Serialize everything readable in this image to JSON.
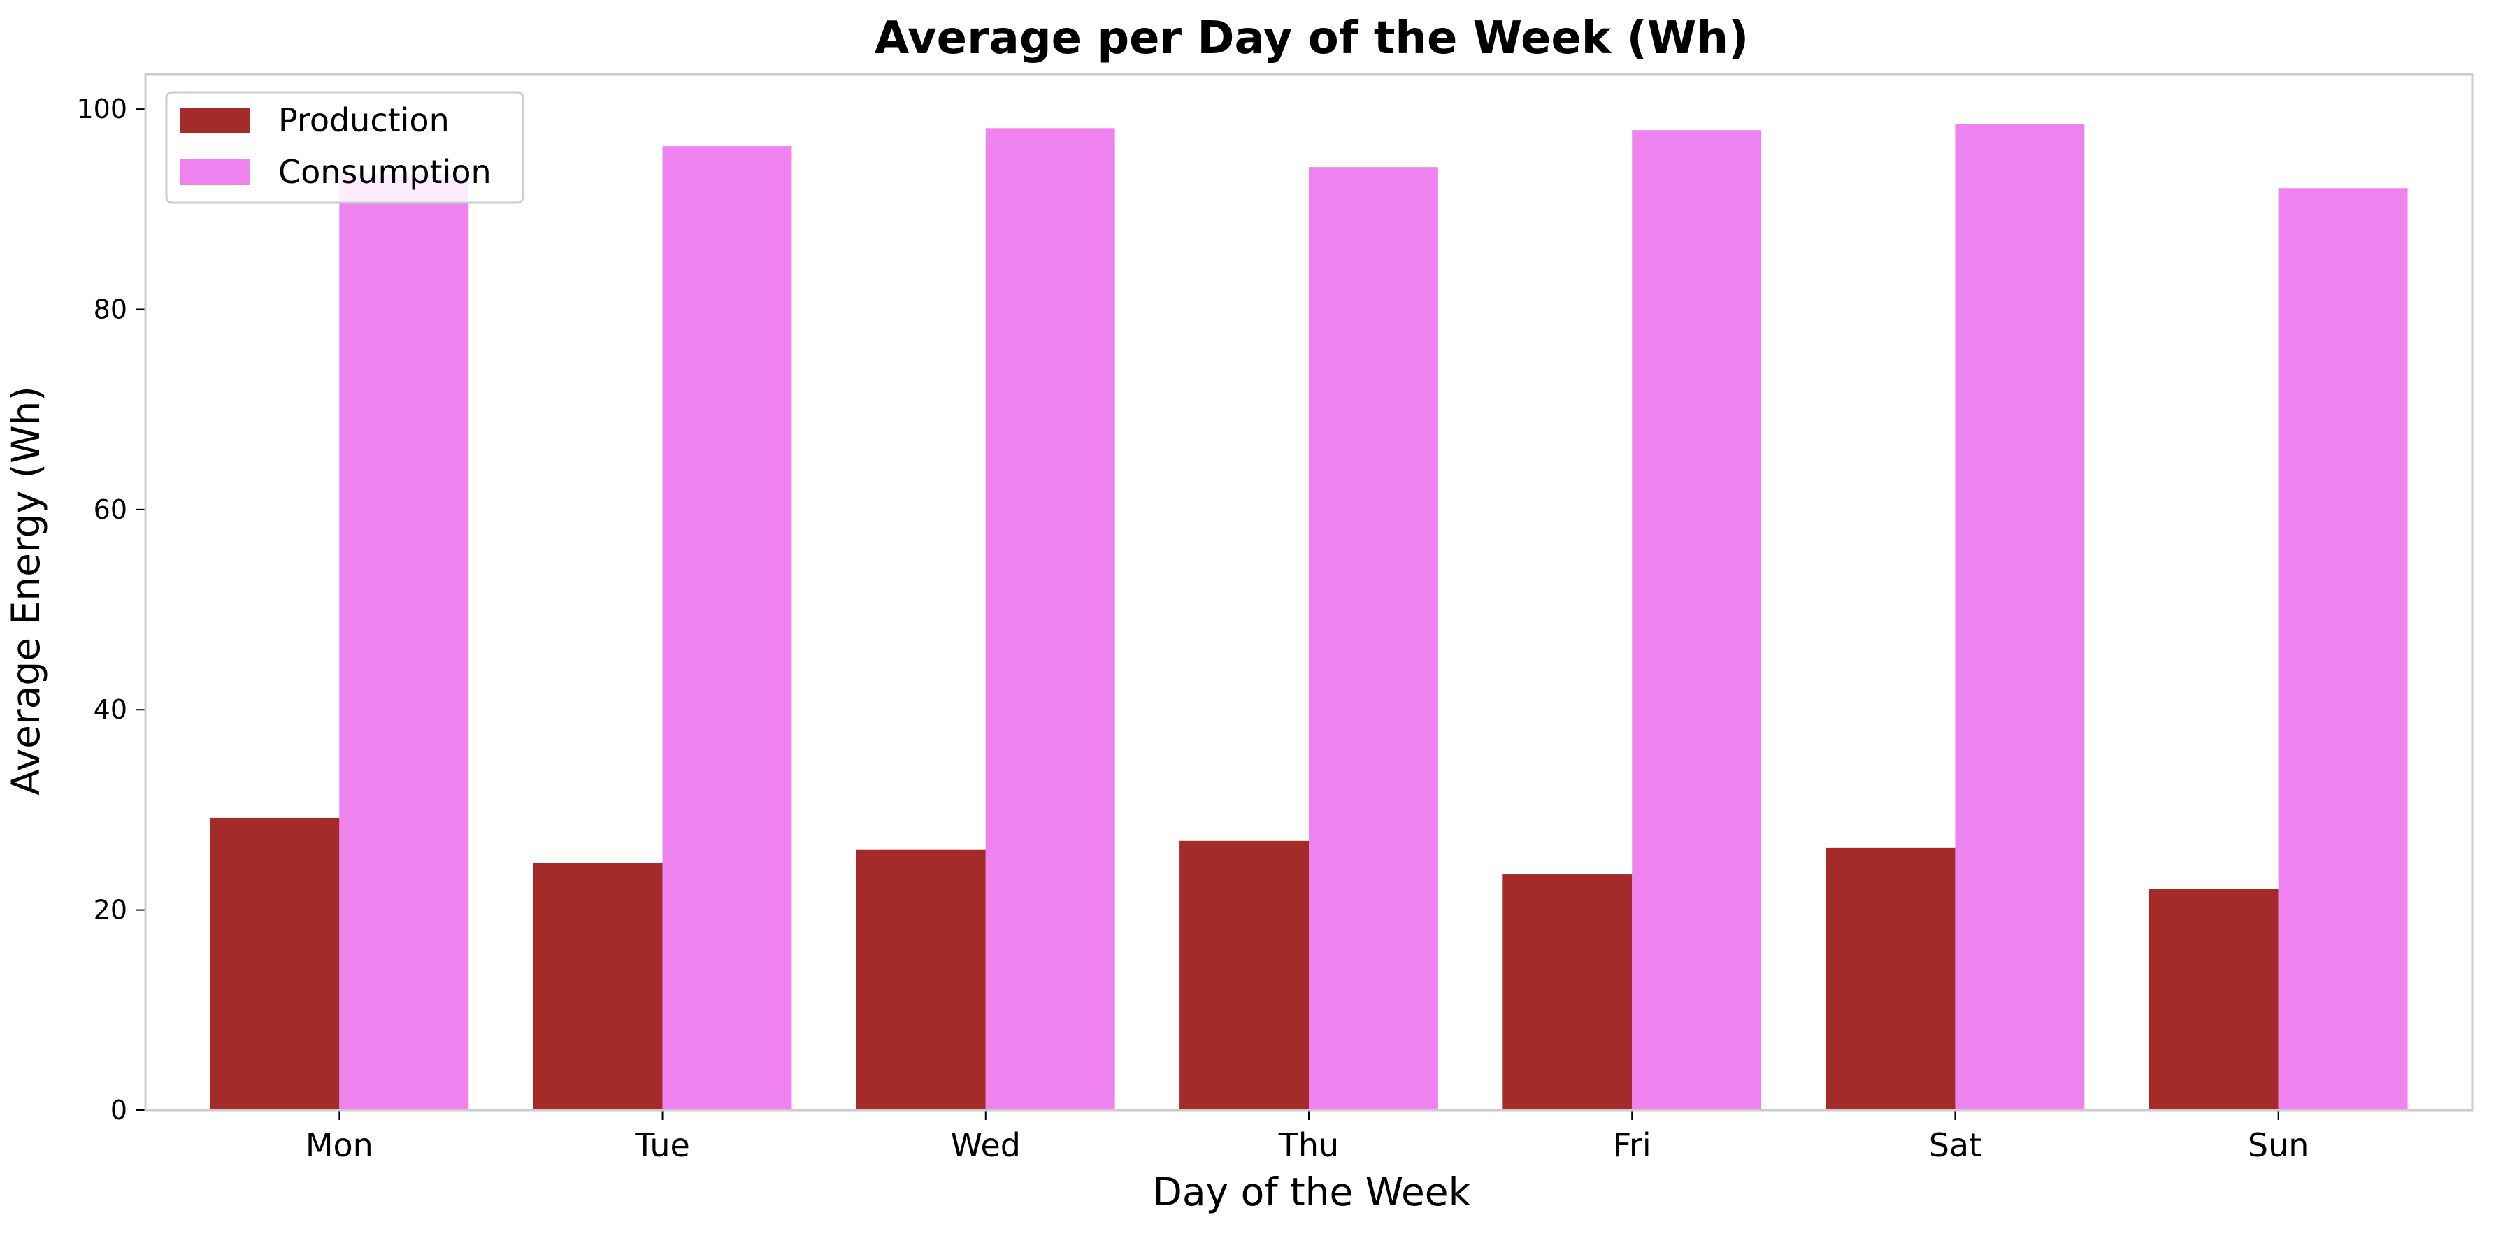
{
  "chart_data": {
    "type": "bar",
    "title": "Average per Day of the Week (Wh)",
    "xlabel": "Day of the Week",
    "ylabel": "Average Energy (Wh)",
    "categories": [
      "Mon",
      "Tue",
      "Wed",
      "Thu",
      "Fri",
      "Sat",
      "Sun"
    ],
    "series": [
      {
        "name": "Production",
        "color": "#a52a2a",
        "values": [
          29.2,
          24.7,
          26.0,
          26.9,
          23.6,
          26.2,
          22.1
        ]
      },
      {
        "name": "Consumption",
        "color": "#ee82ee",
        "values": [
          93.5,
          96.3,
          98.1,
          94.2,
          97.9,
          98.5,
          92.1
        ]
      }
    ],
    "ylim": [
      0,
      103.5
    ],
    "yticks": [
      0,
      20,
      40,
      60,
      80,
      100
    ],
    "grid": false,
    "legend_position": "top-left",
    "frame_color": "#cccccc"
  }
}
